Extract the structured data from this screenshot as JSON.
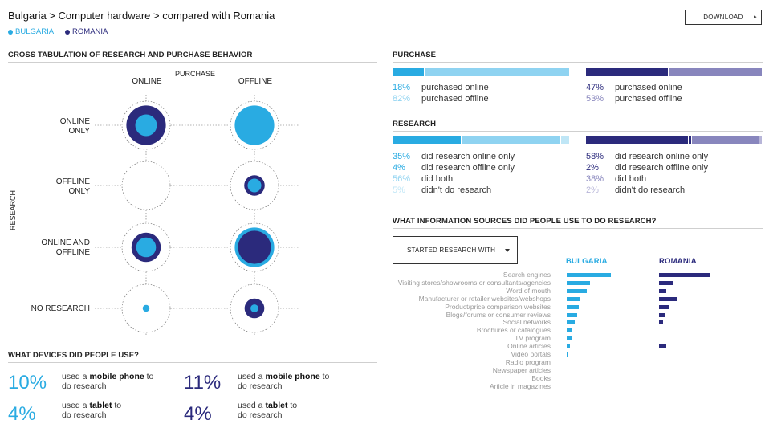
{
  "header": {
    "title": "Bulgaria > Computer hardware > compared with Romania",
    "download_label": "DOWNLOAD",
    "download_arrow": "▸"
  },
  "legend": [
    {
      "label": "BULGARIA",
      "color": "#29abe2"
    },
    {
      "label": "ROMANIA",
      "color": "#2b2a7c"
    }
  ],
  "colors": {
    "bulgaria": "#29abe2",
    "bulgaria_light": "#8fd3f1",
    "romania": "#2b2a7c",
    "romania_light": "#8886bd"
  },
  "cross_tab": {
    "title": "CROSS TABULATION OF RESEARCH AND PURCHASE BEHAVIOR",
    "purchase_label": "PURCHASE",
    "research_label": "RESEARCH",
    "columns": [
      "ONLINE",
      "OFFLINE"
    ],
    "rows": [
      {
        "label_line1": "ONLINE",
        "label_line2": "ONLY"
      },
      {
        "label_line1": "OFFLINE",
        "label_line2": "ONLY"
      },
      {
        "label_line1": "ONLINE AND",
        "label_line2": "OFFLINE"
      },
      {
        "label_line1": "NO RESEARCH",
        "label_line2": ""
      }
    ]
  },
  "chart_data": {
    "type": "bubble-matrix",
    "title": "CROSS TABULATION OF RESEARCH AND PURCHASE BEHAVIOR",
    "xlabel": "PURCHASE",
    "ylabel": "RESEARCH",
    "columns": [
      "ONLINE",
      "OFFLINE"
    ],
    "rows": [
      "ONLINE ONLY",
      "OFFLINE ONLY",
      "ONLINE AND OFFLINE",
      "NO RESEARCH"
    ],
    "series": [
      {
        "name": "BULGARIA",
        "values": [
          [
            0.3,
            1.0
          ],
          [
            0.0,
            0.12
          ],
          [
            0.25,
            1.0
          ],
          [
            0.03,
            0.04
          ]
        ]
      },
      {
        "name": "ROMANIA",
        "values": [
          [
            1.0,
            0.0
          ],
          [
            0.0,
            0.27
          ],
          [
            0.55,
            0.7
          ],
          [
            0.0,
            0.25
          ]
        ]
      }
    ]
  },
  "purchase": {
    "title": "PURCHASE",
    "bulgaria": [
      {
        "pct": "18%",
        "text": "purchased online",
        "value": 18
      },
      {
        "pct": "82%",
        "text": "purchased offline",
        "value": 82
      }
    ],
    "romania": [
      {
        "pct": "47%",
        "text": "purchased online",
        "value": 47
      },
      {
        "pct": "53%",
        "text": "purchased offline",
        "value": 53
      }
    ]
  },
  "research": {
    "title": "RESEARCH",
    "bulgaria": [
      {
        "pct": "35%",
        "text": "did research online only",
        "value": 35
      },
      {
        "pct": "4%",
        "text": "did research offline only",
        "value": 4
      },
      {
        "pct": "56%",
        "text": "did both",
        "value": 56
      },
      {
        "pct": "5%",
        "text": "didn't do research",
        "value": 5
      }
    ],
    "romania": [
      {
        "pct": "58%",
        "text": "did research online only",
        "value": 58
      },
      {
        "pct": "2%",
        "text": "did research offline only",
        "value": 2
      },
      {
        "pct": "38%",
        "text": "did both",
        "value": 38
      },
      {
        "pct": "2%",
        "text": "didn't do research",
        "value": 2
      }
    ]
  },
  "sources": {
    "title": "WHAT INFORMATION SOURCES DID PEOPLE USE TO DO RESEARCH?",
    "dropdown_label": "STARTED RESEARCH WITH",
    "col_bulgaria": "BULGARIA",
    "col_romania": "ROMANIA",
    "items": [
      {
        "label": "Search engines",
        "bg": 55,
        "ro": 64
      },
      {
        "label": "Visiting stores/showrooms or consultants/agencies",
        "bg": 29,
        "ro": 17
      },
      {
        "label": "Word of mouth",
        "bg": 25,
        "ro": 9
      },
      {
        "label": "Manufacturer or retailer websites/webshops",
        "bg": 17,
        "ro": 23
      },
      {
        "label": "Product/price comparison websites",
        "bg": 15,
        "ro": 12
      },
      {
        "label": "Blogs/forums or consumer reviews",
        "bg": 13,
        "ro": 8
      },
      {
        "label": "Social networks",
        "bg": 10,
        "ro": 5
      },
      {
        "label": "Brochures or catalogues",
        "bg": 7,
        "ro": 0
      },
      {
        "label": "TV program",
        "bg": 6,
        "ro": 0
      },
      {
        "label": "Online articles",
        "bg": 4,
        "ro": 9
      },
      {
        "label": "Video portals",
        "bg": 2,
        "ro": 0
      },
      {
        "label": "Radio program",
        "bg": 0,
        "ro": 0
      },
      {
        "label": "Newspaper articles",
        "bg": 0,
        "ro": 0
      },
      {
        "label": "Books",
        "bg": 0,
        "ro": 0
      },
      {
        "label": "Article in magazines",
        "bg": 0,
        "ro": 0
      }
    ]
  },
  "devices": {
    "title": "WHAT DEVICES DID PEOPLE USE?",
    "bulgaria": [
      {
        "pct": "10%",
        "pre": "used a ",
        "device": "mobile phone",
        "post": " to",
        "line2": "do research"
      },
      {
        "pct": "4%",
        "pre": "used a ",
        "device": "tablet",
        "post": " to",
        "line2": "do research"
      }
    ],
    "romania": [
      {
        "pct": "11%",
        "pre": "used a ",
        "device": "mobile phone",
        "post": " to",
        "line2": "do research"
      },
      {
        "pct": "4%",
        "pre": "used a ",
        "device": "tablet",
        "post": " to",
        "line2": "do research"
      }
    ]
  }
}
